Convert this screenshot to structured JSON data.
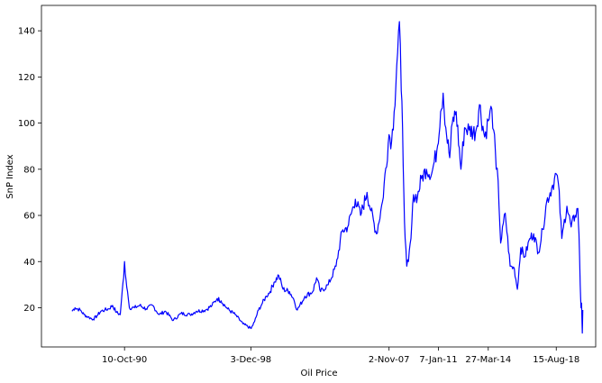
{
  "chart_data": {
    "type": "line",
    "title": "",
    "xlabel": "Oil Price",
    "ylabel": "SnP Index",
    "grid": false,
    "legend": "none",
    "line_color": "#0000ff",
    "xlim": [
      "1985-06-01",
      "2021-03-01"
    ],
    "ylim": [
      3,
      151
    ],
    "x_ticks": [
      {
        "label": "10-Oct-90",
        "date": "1990-10-10"
      },
      {
        "label": "3-Dec-98",
        "date": "1998-12-03"
      },
      {
        "label": "2-Nov-07",
        "date": "2007-11-02"
      },
      {
        "label": "7-Jan-11",
        "date": "2011-01-07"
      },
      {
        "label": "27-Mar-14",
        "date": "2014-03-27"
      },
      {
        "label": "15-Aug-18",
        "date": "2018-08-15"
      }
    ],
    "y_ticks": [
      20,
      40,
      60,
      80,
      100,
      120,
      140
    ],
    "series": [
      {
        "x": [
          "1987-05-20",
          "1987-08-01",
          "1987-12-01",
          "1988-03-01",
          "1988-06-01",
          "1988-10-01",
          "1989-01-01",
          "1989-04-01",
          "1989-07-01",
          "1989-10-01",
          "1990-01-01",
          "1990-04-01",
          "1990-07-01",
          "1990-08-15",
          "1990-09-20",
          "1990-10-10",
          "1990-11-15",
          "1990-12-20",
          "1991-02-01",
          "1991-06-01",
          "1991-10-01",
          "1992-03-01",
          "1992-08-01",
          "1993-01-01",
          "1993-06-01",
          "1993-12-01",
          "1994-06-01",
          "1995-01-01",
          "1995-06-01",
          "1996-01-01",
          "1996-06-01",
          "1996-10-01",
          "1997-01-01",
          "1997-06-01",
          "1997-12-01",
          "1998-06-01",
          "1998-12-10",
          "1999-03-01",
          "1999-06-01",
          "1999-09-01",
          "1999-12-01",
          "2000-03-01",
          "2000-06-01",
          "2000-09-20",
          "2001-01-01",
          "2001-06-01",
          "2001-09-01",
          "2001-12-01",
          "2002-06-01",
          "2002-12-01",
          "2003-03-01",
          "2003-06-01",
          "2003-12-01",
          "2004-06-01",
          "2004-10-20",
          "2005-03-01",
          "2005-08-30",
          "2006-01-01",
          "2006-06-01",
          "2006-09-01",
          "2007-01-10",
          "2007-06-01",
          "2007-11-02",
          "2008-01-01",
          "2008-03-01",
          "2008-05-01",
          "2008-07-03",
          "2008-08-15",
          "2008-09-15",
          "2008-10-15",
          "2008-11-15",
          "2008-12-23",
          "2009-02-01",
          "2009-04-01",
          "2009-06-01",
          "2009-09-01",
          "2009-12-01",
          "2010-04-01",
          "2010-08-01",
          "2010-12-01",
          "2011-03-01",
          "2011-04-29",
          "2011-07-01",
          "2011-10-01",
          "2011-12-01",
          "2012-03-01",
          "2012-06-21",
          "2012-09-14",
          "2013-01-01",
          "2013-06-01",
          "2013-09-01",
          "2014-01-01",
          "2014-03-27",
          "2014-06-20",
          "2014-08-01",
          "2014-10-01",
          "2014-11-15",
          "2015-01-13",
          "2015-05-01",
          "2015-08-24",
          "2015-12-01",
          "2016-02-11",
          "2016-05-01",
          "2016-08-01",
          "2016-12-01",
          "2017-03-01",
          "2017-06-21",
          "2017-10-01",
          "2018-01-01",
          "2018-05-01",
          "2018-08-15",
          "2018-10-03",
          "2018-12-24",
          "2019-02-01",
          "2019-04-23",
          "2019-08-01",
          "2019-11-01",
          "2020-01-06",
          "2020-02-01",
          "2020-03-01",
          "2020-03-20",
          "2020-04-02",
          "2020-04-20",
          "2020-05-01"
        ],
        "values": [
          18.5,
          20,
          19,
          17,
          16,
          15,
          16.5,
          18.5,
          19,
          19.5,
          21,
          18,
          17,
          27,
          33,
          40,
          32,
          27,
          20,
          20,
          21,
          19.5,
          21,
          17,
          18.5,
          14.5,
          17.5,
          17,
          18.5,
          19,
          21,
          24,
          23,
          19.5,
          17,
          13,
          11,
          14,
          19,
          22,
          25,
          27,
          31,
          34,
          28,
          27,
          24,
          19,
          25,
          27,
          33,
          27,
          30,
          38,
          53,
          55,
          67,
          60,
          70,
          62,
          52,
          66,
          95,
          92,
          105,
          125,
          144,
          114,
          98,
          70,
          50,
          38,
          40,
          50,
          69,
          68,
          76,
          80,
          78,
          88,
          105,
          113,
          98,
          85,
          100,
          105,
          80,
          98,
          97,
          96,
          108,
          94,
          101,
          106,
          97,
          80,
          75,
          48,
          61,
          38,
          37,
          28,
          46,
          42,
          50,
          52,
          44,
          54,
          66,
          72,
          78,
          74,
          50,
          55,
          64,
          55,
          60,
          63,
          52,
          30,
          20,
          22,
          9,
          19
        ]
      }
    ]
  }
}
